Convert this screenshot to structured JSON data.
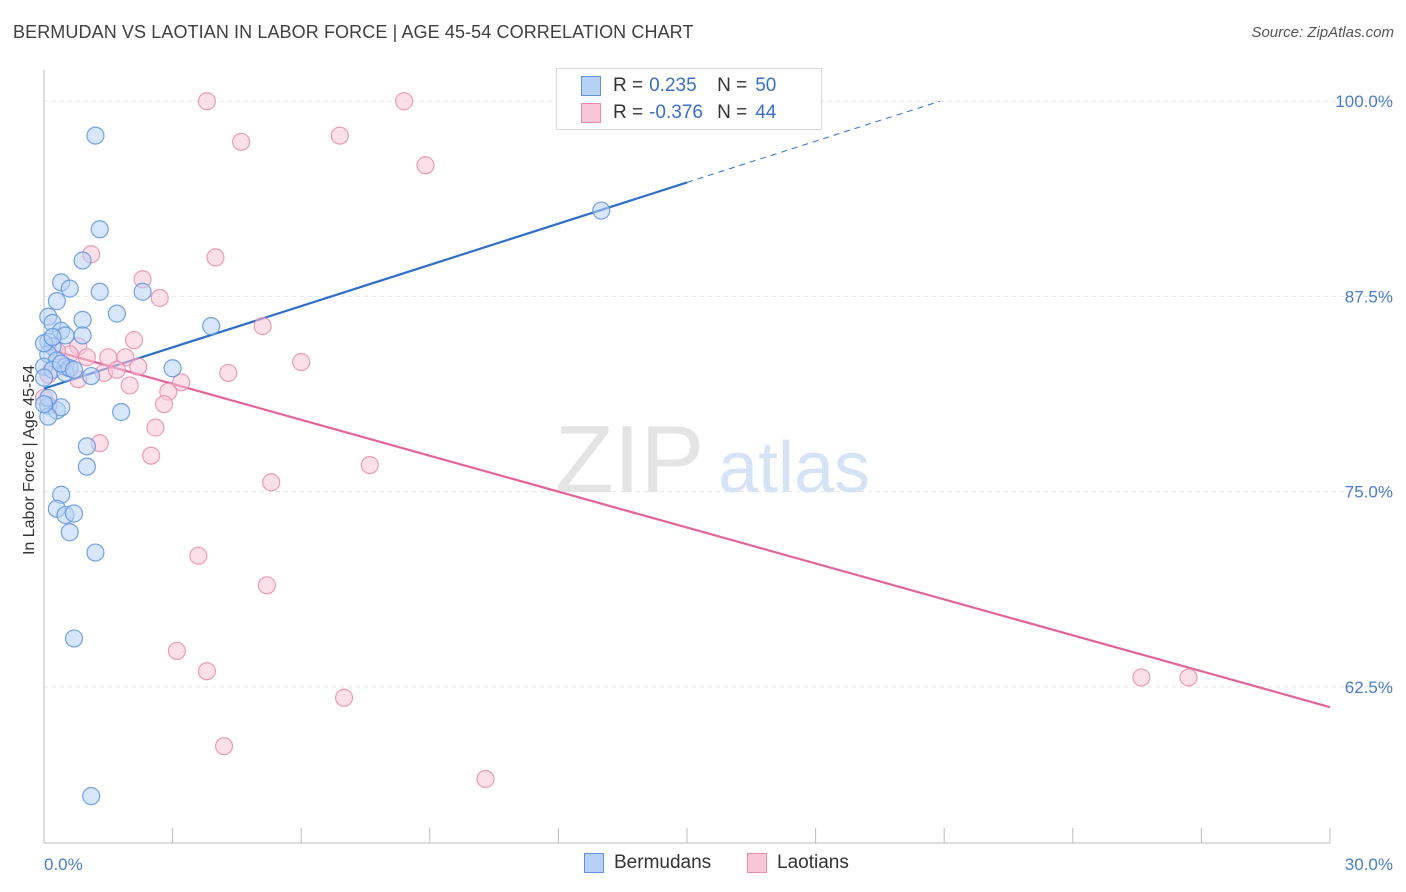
{
  "header": {
    "title": "BERMUDAN VS LAOTIAN IN LABOR FORCE | AGE 45-54 CORRELATION CHART",
    "source": "Source: ZipAtlas.com"
  },
  "watermark": {
    "zip": "ZIP",
    "atlas": "atlas"
  },
  "legend_top": {
    "rows": [
      {
        "r_label": "R =",
        "r_value": "0.235",
        "n_label": "N =",
        "n_value": "50"
      },
      {
        "r_label": "R =",
        "r_value": "-0.376",
        "n_label": "N =",
        "n_value": "44"
      }
    ]
  },
  "legend_bottom": {
    "items": [
      "Bermudans",
      "Laotians"
    ]
  },
  "colors": {
    "blue_fill": "#b7d1f5",
    "blue_stroke": "#5e93dd",
    "blue_line": "#2f6fcb",
    "pink_fill": "#f8c7d7",
    "pink_stroke": "#e88cab",
    "pink_line": "#e2649a",
    "grid": "#e3e3e3",
    "axis_text": "#4a7cc7"
  },
  "chart_data": {
    "type": "scatter",
    "title": "BERMUDAN VS LAOTIAN IN LABOR FORCE | AGE 45-54 CORRELATION CHART",
    "xlabel": "",
    "ylabel": "In Labor Force | Age 45-54",
    "xlim": [
      0,
      30
    ],
    "ylim": [
      52.5,
      102
    ],
    "x_tick_labels": [
      "0.0%",
      "30.0%"
    ],
    "y_ticks": [
      62.5,
      75.0,
      87.5,
      100.0
    ],
    "y_tick_labels": [
      "62.5%",
      "75.0%",
      "87.5%",
      "100.0%"
    ],
    "grid": true,
    "series": [
      {
        "name": "Bermudans",
        "r": 0.235,
        "n": 50,
        "trend": {
          "x": [
            0,
            15.0
          ],
          "y": [
            81.6,
            94.8
          ],
          "dashed_to": {
            "x": 20.9,
            "y": 100.0
          }
        },
        "points": [
          [
            1.2,
            97.8
          ],
          [
            1.3,
            91.8
          ],
          [
            13.0,
            93.0
          ],
          [
            0.9,
            89.8
          ],
          [
            0.4,
            88.4
          ],
          [
            0.6,
            88.0
          ],
          [
            1.3,
            87.8
          ],
          [
            2.3,
            87.8
          ],
          [
            0.3,
            87.2
          ],
          [
            0.1,
            86.2
          ],
          [
            0.9,
            86.0
          ],
          [
            1.7,
            86.4
          ],
          [
            3.9,
            85.6
          ],
          [
            0.2,
            85.8
          ],
          [
            0.4,
            85.3
          ],
          [
            0.5,
            85.0
          ],
          [
            0.1,
            84.6
          ],
          [
            0.2,
            84.3
          ],
          [
            0.1,
            83.8
          ],
          [
            0.3,
            83.4
          ],
          [
            0.5,
            83.0
          ],
          [
            0.0,
            83.0
          ],
          [
            0.2,
            82.8
          ],
          [
            0.5,
            82.6
          ],
          [
            1.1,
            82.4
          ],
          [
            3.0,
            82.9
          ],
          [
            0.1,
            80.5
          ],
          [
            0.3,
            80.2
          ],
          [
            0.4,
            80.4
          ],
          [
            0.1,
            79.8
          ],
          [
            1.8,
            80.1
          ],
          [
            1.0,
            77.9
          ],
          [
            1.0,
            76.6
          ],
          [
            0.4,
            74.8
          ],
          [
            0.3,
            73.9
          ],
          [
            0.5,
            73.5
          ],
          [
            0.7,
            73.6
          ],
          [
            0.6,
            72.4
          ],
          [
            1.2,
            71.1
          ],
          [
            0.7,
            65.6
          ],
          [
            1.1,
            55.5
          ],
          [
            0.0,
            84.5
          ],
          [
            0.0,
            82.3
          ],
          [
            0.1,
            81.0
          ],
          [
            0.6,
            82.9
          ],
          [
            0.9,
            85.0
          ],
          [
            0.2,
            84.9
          ],
          [
            0.0,
            80.6
          ],
          [
            0.4,
            83.2
          ],
          [
            0.7,
            82.8
          ]
        ]
      },
      {
        "name": "Laotians",
        "r": -0.376,
        "n": 44,
        "trend": {
          "x": [
            0,
            30.0
          ],
          "y": [
            84.2,
            61.2
          ]
        },
        "points": [
          [
            3.8,
            100.0
          ],
          [
            8.4,
            100.0
          ],
          [
            4.6,
            97.4
          ],
          [
            6.9,
            97.8
          ],
          [
            8.9,
            95.9
          ],
          [
            1.1,
            90.2
          ],
          [
            4.0,
            90.0
          ],
          [
            2.3,
            88.6
          ],
          [
            2.7,
            87.4
          ],
          [
            5.1,
            85.6
          ],
          [
            2.1,
            84.7
          ],
          [
            0.8,
            84.3
          ],
          [
            0.6,
            83.8
          ],
          [
            1.0,
            83.6
          ],
          [
            1.5,
            83.6
          ],
          [
            1.9,
            83.6
          ],
          [
            2.2,
            83.0
          ],
          [
            6.0,
            83.3
          ],
          [
            0.1,
            82.5
          ],
          [
            1.4,
            82.6
          ],
          [
            4.3,
            82.6
          ],
          [
            3.2,
            82.0
          ],
          [
            2.0,
            81.8
          ],
          [
            0.8,
            82.2
          ],
          [
            2.9,
            81.4
          ],
          [
            2.8,
            80.6
          ],
          [
            2.6,
            79.1
          ],
          [
            1.3,
            78.1
          ],
          [
            2.5,
            77.3
          ],
          [
            7.6,
            76.7
          ],
          [
            5.3,
            75.6
          ],
          [
            3.6,
            70.9
          ],
          [
            5.2,
            69.0
          ],
          [
            3.1,
            64.8
          ],
          [
            3.8,
            63.5
          ],
          [
            7.0,
            61.8
          ],
          [
            4.2,
            58.7
          ],
          [
            10.3,
            56.6
          ],
          [
            25.6,
            63.1
          ],
          [
            26.7,
            63.1
          ],
          [
            0.5,
            83.0
          ],
          [
            1.7,
            82.8
          ],
          [
            0.3,
            84.0
          ],
          [
            0.0,
            81.0
          ]
        ]
      }
    ]
  }
}
